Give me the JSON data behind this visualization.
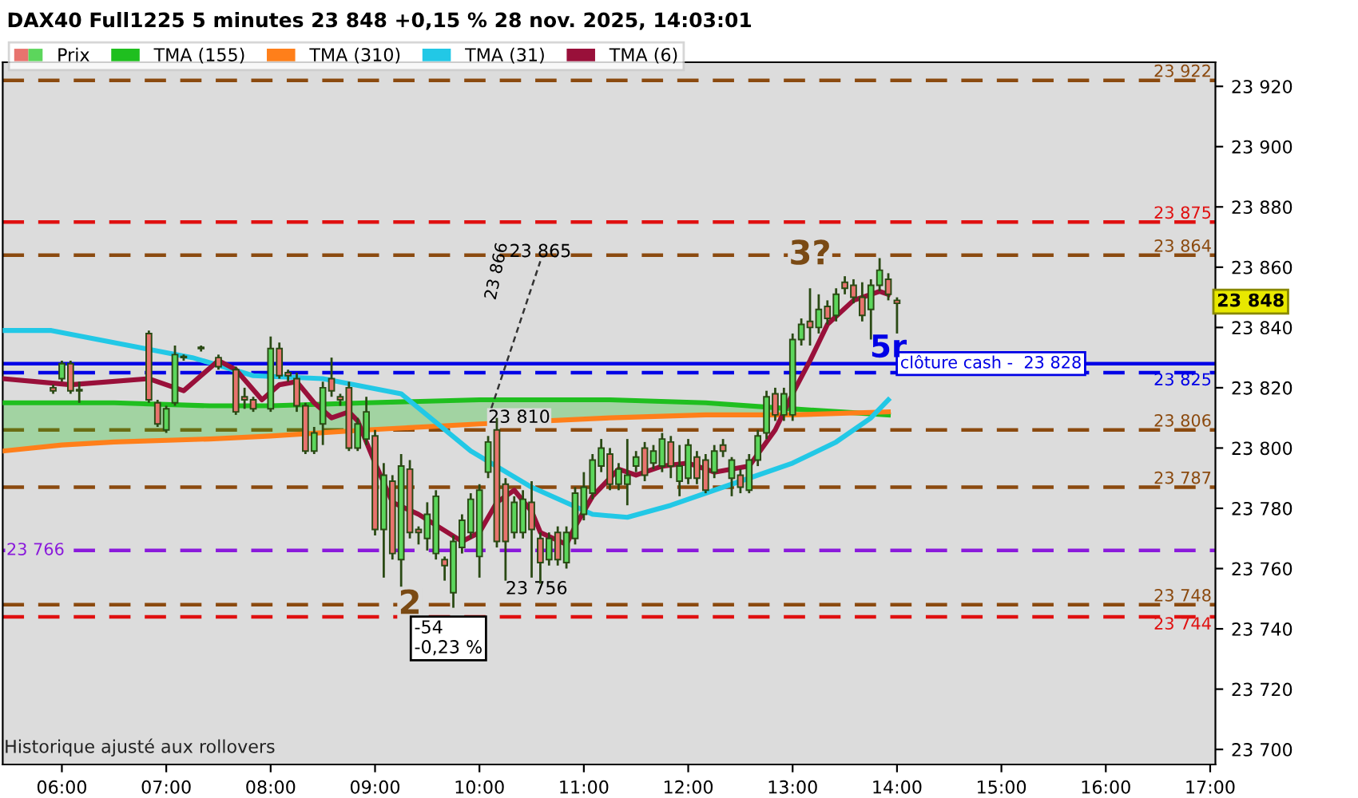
{
  "chart_data": {
    "type": "candlestick",
    "title": "DAX40 Full1225 5 minutes 23 848 +0,15 % 28 nov. 2025, 14:03:01",
    "xlim": [
      "2025-11-28T05:26",
      "2025-11-28T17:03"
    ],
    "xticks": [
      {
        "value": "2025-11-28T06:00",
        "label": "06:00"
      },
      {
        "value": "2025-11-28T07:00",
        "label": "07:00"
      },
      {
        "value": "2025-11-28T08:00",
        "label": "08:00"
      },
      {
        "value": "2025-11-28T09:00",
        "label": "09:00"
      },
      {
        "value": "2025-11-28T10:00",
        "label": "10:00"
      },
      {
        "value": "2025-11-28T11:00",
        "label": "11:00"
      },
      {
        "value": "2025-11-28T12:00",
        "label": "12:00"
      },
      {
        "value": "2025-11-28T13:00",
        "label": "13:00"
      },
      {
        "value": "2025-11-28T14:00",
        "label": "14:00"
      },
      {
        "value": "2025-11-28T15:00",
        "label": "15:00"
      },
      {
        "value": "2025-11-28T16:00",
        "label": "16:00"
      },
      {
        "value": "2025-11-28T17:00",
        "label": "17:00"
      }
    ],
    "ylim": [
      23695,
      23928
    ],
    "yticks": [
      {
        "value": 23700,
        "label": "23 700"
      },
      {
        "value": 23720,
        "label": "23 720"
      },
      {
        "value": 23740,
        "label": "23 740"
      },
      {
        "value": 23760,
        "label": "23 760"
      },
      {
        "value": 23780,
        "label": "23 780"
      },
      {
        "value": 23800,
        "label": "23 800"
      },
      {
        "value": 23820,
        "label": "23 820"
      },
      {
        "value": 23840,
        "label": "23 840"
      },
      {
        "value": 23860,
        "label": "23 860"
      },
      {
        "value": 23880,
        "label": "23 880"
      },
      {
        "value": 23900,
        "label": "23 900"
      },
      {
        "value": 23920,
        "label": "23 920"
      }
    ],
    "legend": "top left",
    "series": [
      {
        "name": "Prix",
        "x": [
          "2025-11-28T05:55",
          "2025-11-28T06:00",
          "2025-11-28T06:05",
          "2025-11-28T06:10",
          "2025-11-28T06:50",
          "2025-11-28T06:55",
          "2025-11-28T07:00",
          "2025-11-28T07:05",
          "2025-11-28T07:10",
          "2025-11-28T07:20",
          "2025-11-28T07:30",
          "2025-11-28T07:40",
          "2025-11-28T07:45",
          "2025-11-28T07:50",
          "2025-11-28T08:00",
          "2025-11-28T08:05",
          "2025-11-28T08:10",
          "2025-11-28T08:15",
          "2025-11-28T08:20",
          "2025-11-28T08:25",
          "2025-11-28T08:30",
          "2025-11-28T08:35",
          "2025-11-28T08:40",
          "2025-11-28T08:45",
          "2025-11-28T08:50",
          "2025-11-28T08:55",
          "2025-11-28T09:00",
          "2025-11-28T09:05",
          "2025-11-28T09:10",
          "2025-11-28T09:15",
          "2025-11-28T09:20",
          "2025-11-28T09:25",
          "2025-11-28T09:30",
          "2025-11-28T09:35",
          "2025-11-28T09:40",
          "2025-11-28T09:45",
          "2025-11-28T09:50",
          "2025-11-28T09:55",
          "2025-11-28T10:00",
          "2025-11-28T10:05",
          "2025-11-28T10:10",
          "2025-11-28T10:15",
          "2025-11-28T10:20",
          "2025-11-28T10:25",
          "2025-11-28T10:30",
          "2025-11-28T10:35",
          "2025-11-28T10:40",
          "2025-11-28T10:45",
          "2025-11-28T10:50",
          "2025-11-28T10:55",
          "2025-11-28T11:00",
          "2025-11-28T11:05",
          "2025-11-28T11:10",
          "2025-11-28T11:15",
          "2025-11-28T11:20",
          "2025-11-28T11:25",
          "2025-11-28T11:30",
          "2025-11-28T11:35",
          "2025-11-28T11:40",
          "2025-11-28T11:45",
          "2025-11-28T11:50",
          "2025-11-28T11:55",
          "2025-11-28T12:00",
          "2025-11-28T12:05",
          "2025-11-28T12:10",
          "2025-11-28T12:15",
          "2025-11-28T12:20",
          "2025-11-28T12:25",
          "2025-11-28T12:30",
          "2025-11-28T12:35",
          "2025-11-28T12:40",
          "2025-11-28T12:45",
          "2025-11-28T12:50",
          "2025-11-28T12:55",
          "2025-11-28T13:00",
          "2025-11-28T13:05",
          "2025-11-28T13:10",
          "2025-11-28T13:15",
          "2025-11-28T13:20",
          "2025-11-28T13:25",
          "2025-11-28T13:30",
          "2025-11-28T13:35",
          "2025-11-28T13:40",
          "2025-11-28T13:45",
          "2025-11-28T13:50",
          "2025-11-28T13:55",
          "2025-11-28T14:00"
        ],
        "ohlc": [
          [
            23820,
            23821,
            23818,
            23819
          ],
          [
            23823,
            23829,
            23822,
            23828
          ],
          [
            23828,
            23829,
            23818,
            23819
          ],
          [
            23819,
            23822,
            23815,
            23819
          ],
          [
            23838,
            23839,
            23815,
            23816
          ],
          [
            23815,
            23816,
            23807,
            23808
          ],
          [
            23806,
            23814,
            23805,
            23813
          ],
          [
            23815,
            23834,
            23814,
            23831
          ],
          [
            23830,
            23831,
            23829,
            23830
          ],
          [
            23833,
            23834,
            23832,
            23833
          ],
          [
            23830,
            23831,
            23826,
            23827
          ],
          [
            23826,
            23827,
            23811,
            23812
          ],
          [
            23817,
            23820,
            23813,
            23816
          ],
          [
            23816,
            23817,
            23812,
            23813
          ],
          [
            23813,
            23837,
            23812,
            23833
          ],
          [
            23833,
            23835,
            23823,
            23824
          ],
          [
            23825,
            23826,
            23822,
            23824
          ],
          [
            23823,
            23825,
            23812,
            23814
          ],
          [
            23814,
            23815,
            23798,
            23799
          ],
          [
            23799,
            23807,
            23798,
            23805
          ],
          [
            23808,
            23822,
            23801,
            23820
          ],
          [
            23823,
            23830,
            23817,
            23819
          ],
          [
            23817,
            23818,
            23814,
            23816
          ],
          [
            23820,
            23822,
            23799,
            23800
          ],
          [
            23800,
            23810,
            23799,
            23808
          ],
          [
            23803,
            23817,
            23801,
            23812
          ],
          [
            23804,
            23806,
            23771,
            23773
          ],
          [
            23773,
            23795,
            23757,
            23791
          ],
          [
            23789,
            23791,
            23763,
            23765
          ],
          [
            23763,
            23798,
            23754,
            23794
          ],
          [
            23793,
            23796,
            23770,
            23772
          ],
          [
            23773,
            23774,
            23768,
            23772
          ],
          [
            23770,
            23782,
            23766,
            23778
          ],
          [
            23765,
            23786,
            23763,
            23784
          ],
          [
            23763,
            23764,
            23756,
            23761
          ],
          [
            23752,
            23771,
            23747,
            23769
          ],
          [
            23767,
            23778,
            23765,
            23776
          ],
          [
            23772,
            23785,
            23770,
            23783
          ],
          [
            23764,
            23788,
            23757,
            23786
          ],
          [
            23792,
            23804,
            23790,
            23802
          ],
          [
            23806,
            23810,
            23767,
            23769
          ],
          [
            23788,
            23790,
            23756,
            23769
          ],
          [
            23772,
            23784,
            23770,
            23782
          ],
          [
            23772,
            23786,
            23770,
            23783
          ],
          [
            23782,
            23789,
            23757,
            23773
          ],
          [
            23770,
            23772,
            23755,
            23762
          ],
          [
            23763,
            23772,
            23761,
            23770
          ],
          [
            23772,
            23774,
            23761,
            23763
          ],
          [
            23762,
            23774,
            23760,
            23772
          ],
          [
            23770,
            23787,
            23768,
            23785
          ],
          [
            23778,
            23792,
            23776,
            23787
          ],
          [
            23785,
            23798,
            23783,
            23796
          ],
          [
            23794,
            23803,
            23792,
            23800
          ],
          [
            23798,
            23800,
            23786,
            23788
          ],
          [
            23788,
            23795,
            23786,
            23793
          ],
          [
            23788,
            23803,
            23781,
            23791
          ],
          [
            23794,
            23799,
            23792,
            23797
          ],
          [
            23800,
            23802,
            23789,
            23791
          ],
          [
            23795,
            23801,
            23793,
            23799
          ],
          [
            23794,
            23805,
            23792,
            23803
          ],
          [
            23802,
            23804,
            23790,
            23794
          ],
          [
            23789,
            23801,
            23784,
            23794
          ],
          [
            23790,
            23803,
            23788,
            23801
          ],
          [
            23797,
            23799,
            23788,
            23790
          ],
          [
            23796,
            23798,
            23785,
            23786
          ],
          [
            23792,
            23801,
            23790,
            23799
          ],
          [
            23801,
            23803,
            23797,
            23799
          ],
          [
            23790,
            23797,
            23784,
            23796
          ],
          [
            23791,
            23793,
            23785,
            23787
          ],
          [
            23786,
            23798,
            23785,
            23796
          ],
          [
            23796,
            23806,
            23794,
            23804
          ],
          [
            23805,
            23819,
            23803,
            23817
          ],
          [
            23818,
            23820,
            23809,
            23811
          ],
          [
            23811,
            23820,
            23809,
            23818
          ],
          [
            23811,
            23838,
            23809,
            23836
          ],
          [
            23836,
            23843,
            23834,
            23841
          ],
          [
            23842,
            23853,
            23834,
            23840
          ],
          [
            23840,
            23851,
            23838,
            23846
          ],
          [
            23847,
            23849,
            23841,
            23843
          ],
          [
            23844,
            23853,
            23842,
            23851
          ],
          [
            23855,
            23857,
            23851,
            23853
          ],
          [
            23854,
            23856,
            23848,
            23850
          ],
          [
            23850,
            23855,
            23842,
            23844
          ],
          [
            23846,
            23856,
            23836,
            23854
          ],
          [
            23854,
            23863,
            23852,
            23859
          ],
          [
            23856,
            23858,
            23849,
            23851
          ],
          [
            23849,
            23850,
            23838,
            23848
          ]
        ],
        "colors": [
          "#e8736e",
          "#5cd65c",
          "#e8736e",
          "#5cd65c",
          "#e8736e",
          "#e8736e",
          "#5cd65c",
          "#5cd65c",
          "#5cd65c",
          "#5cd65c",
          "#e8736e",
          "#e8736e",
          "#e8736e",
          "#e8736e",
          "#5cd65c",
          "#e8736e",
          "#e8736e",
          "#e8736e",
          "#e8736e",
          "#5cd65c",
          "#5cd65c",
          "#e8736e",
          "#e8736e",
          "#e8736e",
          "#5cd65c",
          "#5cd65c",
          "#e8736e",
          "#5cd65c",
          "#e8736e",
          "#5cd65c",
          "#e8736e",
          "#e8736e",
          "#5cd65c",
          "#5cd65c",
          "#e8736e",
          "#5cd65c",
          "#5cd65c",
          "#5cd65c",
          "#5cd65c",
          "#5cd65c",
          "#e8736e",
          "#e8736e",
          "#5cd65c",
          "#5cd65c",
          "#e8736e",
          "#e8736e",
          "#5cd65c",
          "#e8736e",
          "#5cd65c",
          "#5cd65c",
          "#5cd65c",
          "#5cd65c",
          "#5cd65c",
          "#e8736e",
          "#5cd65c",
          "#5cd65c",
          "#5cd65c",
          "#e8736e",
          "#5cd65c",
          "#5cd65c",
          "#e8736e",
          "#5cd65c",
          "#5cd65c",
          "#e8736e",
          "#e8736e",
          "#5cd65c",
          "#e8736e",
          "#5cd65c",
          "#e8736e",
          "#5cd65c",
          "#5cd65c",
          "#5cd65c",
          "#e8736e",
          "#5cd65c",
          "#5cd65c",
          "#5cd65c",
          "#e8736e",
          "#5cd65c",
          "#e8736e",
          "#5cd65c",
          "#e8736e",
          "#e8736e",
          "#e8736e",
          "#5cd65c",
          "#5cd65c",
          "#e8736e",
          "#e8736e"
        ]
      },
      {
        "name": "TMA (155)",
        "type": "line",
        "color": "#1fbf1f",
        "x": [
          "2025-11-28T05:26",
          "2025-11-28T06:00",
          "2025-11-28T06:30",
          "2025-11-28T07:25",
          "2025-11-28T08:00",
          "2025-11-28T08:55",
          "2025-11-28T10:00",
          "2025-11-28T11:15",
          "2025-11-28T12:10",
          "2025-11-28T13:00",
          "2025-11-28T13:55"
        ],
        "values": [
          23815,
          23815,
          23815,
          23814,
          23814,
          23815,
          23816,
          23816,
          23815,
          23813,
          23811
        ],
        "upper": [
          23815,
          23815,
          23815,
          23814,
          23814,
          23815,
          23816,
          23816,
          23815,
          23813,
          23811
        ],
        "lower": [
          23799,
          23801,
          23802,
          23803,
          23804,
          23806,
          23808,
          23810,
          23811,
          23811,
          23812
        ]
      },
      {
        "name": "TMA (310)",
        "type": "line",
        "color": "#ff7f1a",
        "x": [
          "2025-11-28T05:26",
          "2025-11-28T06:00",
          "2025-11-28T06:30",
          "2025-11-28T07:25",
          "2025-11-28T08:00",
          "2025-11-28T08:55",
          "2025-11-28T10:00",
          "2025-11-28T11:15",
          "2025-11-28T12:10",
          "2025-11-28T13:00",
          "2025-11-28T13:55"
        ],
        "values": [
          23799,
          23801,
          23802,
          23803,
          23804,
          23806,
          23808,
          23810,
          23811,
          23811,
          23812
        ]
      },
      {
        "name": "TMA (31)",
        "type": "line",
        "color": "#22c8e6",
        "x": [
          "2025-11-28T05:26",
          "2025-11-28T05:54",
          "2025-11-28T07:15",
          "2025-11-28T07:50",
          "2025-11-28T08:30",
          "2025-11-28T09:15",
          "2025-11-28T09:55",
          "2025-11-28T10:30",
          "2025-11-28T11:05",
          "2025-11-28T11:25",
          "2025-11-28T11:50",
          "2025-11-28T12:25",
          "2025-11-28T13:00",
          "2025-11-28T13:25",
          "2025-11-28T13:45",
          "2025-11-28T13:55"
        ],
        "values": [
          23839,
          23839,
          23830,
          23824,
          23823,
          23818,
          23799,
          23787,
          23778,
          23777,
          23781,
          23788,
          23795,
          23802,
          23810,
          23816
        ]
      },
      {
        "name": "TMA (6)",
        "type": "line",
        "color": "#99103a",
        "x": [
          "2025-11-28T05:26",
          "2025-11-28T06:05",
          "2025-11-28T06:50",
          "2025-11-28T07:10",
          "2025-11-28T07:30",
          "2025-11-28T07:40",
          "2025-11-28T07:55",
          "2025-11-28T08:05",
          "2025-11-28T08:15",
          "2025-11-28T08:25",
          "2025-11-28T08:35",
          "2025-11-28T08:45",
          "2025-11-28T08:50",
          "2025-11-28T09:00",
          "2025-11-28T09:10",
          "2025-11-28T09:25",
          "2025-11-28T09:50",
          "2025-11-28T10:00",
          "2025-11-28T10:10",
          "2025-11-28T10:20",
          "2025-11-28T10:30",
          "2025-11-28T10:35",
          "2025-11-28T10:50",
          "2025-11-28T10:55",
          "2025-11-28T11:05",
          "2025-11-28T11:20",
          "2025-11-28T11:30",
          "2025-11-28T11:45",
          "2025-11-28T12:00",
          "2025-11-28T12:15",
          "2025-11-28T12:35",
          "2025-11-28T12:40",
          "2025-11-28T12:50",
          "2025-11-28T13:00",
          "2025-11-28T13:10",
          "2025-11-28T13:20",
          "2025-11-28T13:35",
          "2025-11-28T13:50",
          "2025-11-28T13:55"
        ],
        "values": [
          23823,
          23821,
          23823,
          23819,
          23829,
          23826,
          23816,
          23821,
          23822,
          23815,
          23810,
          23812,
          23809,
          23795,
          23782,
          23778,
          23769,
          23772,
          23782,
          23786,
          23779,
          23772,
          23768,
          23774,
          23784,
          23793,
          23791,
          23794,
          23795,
          23792,
          23794,
          23798,
          23806,
          23818,
          23829,
          23841,
          23849,
          23852,
          23851
        ]
      }
    ],
    "ref_lines": [
      {
        "axis": "y",
        "value": 23922,
        "label": "23 922",
        "color": "#8b4a0f",
        "line_style": "dashed"
      },
      {
        "axis": "y",
        "value": 23875,
        "label": "23 875",
        "color": "#e01010",
        "line_style": "dashed"
      },
      {
        "axis": "y",
        "value": 23864,
        "label": "23 864",
        "color": "#8b4a0f",
        "line_style": "dashed"
      },
      {
        "axis": "y",
        "value": 23828,
        "label": "clôture cash -  23 828",
        "color": "#0000e6",
        "line_style": "solid"
      },
      {
        "axis": "y",
        "value": 23825,
        "label": "23 825",
        "color": "#0000e6",
        "line_style": "dashed"
      },
      {
        "axis": "y",
        "value": 23806,
        "label": "23 806",
        "color": "#8b4a0f",
        "line_style": "dashed"
      },
      {
        "axis": "y",
        "value": 23787,
        "label": "23 787",
        "color": "#8b4a0f",
        "line_style": "dashed"
      },
      {
        "axis": "y",
        "value": 23766,
        "label": "23 766",
        "color": "#8a1adb",
        "line_style": "dashed"
      },
      {
        "axis": "y",
        "value": 23748,
        "label": "23 748",
        "color": "#8b4a0f",
        "line_style": "dashed"
      },
      {
        "axis": "y",
        "value": 23744,
        "label": "23 744",
        "color": "#e01010",
        "line_style": "dashed"
      }
    ],
    "annotations": [
      {
        "text": "23 865",
        "x": "2025-11-28T10:35",
        "y": 23865
      },
      "23 866",
      {
        "text": "23 810",
        "x": "2025-11-28T10:05",
        "y": 23810
      },
      {
        "text": "23 756",
        "x": "2025-11-28T10:15",
        "y": 23756
      },
      "-54\n-0,23 %",
      {
        "text": "2",
        "x": "2025-11-28T09:20",
        "y": 23748
      },
      {
        "text": "3?",
        "x": "2025-11-28T13:10",
        "y": 23864
      },
      {
        "text": "5r",
        "x": "2025-11-28T13:55",
        "y": 23828
      },
      "23 848",
      "Historique ajusté aux rollovers"
    ]
  }
}
